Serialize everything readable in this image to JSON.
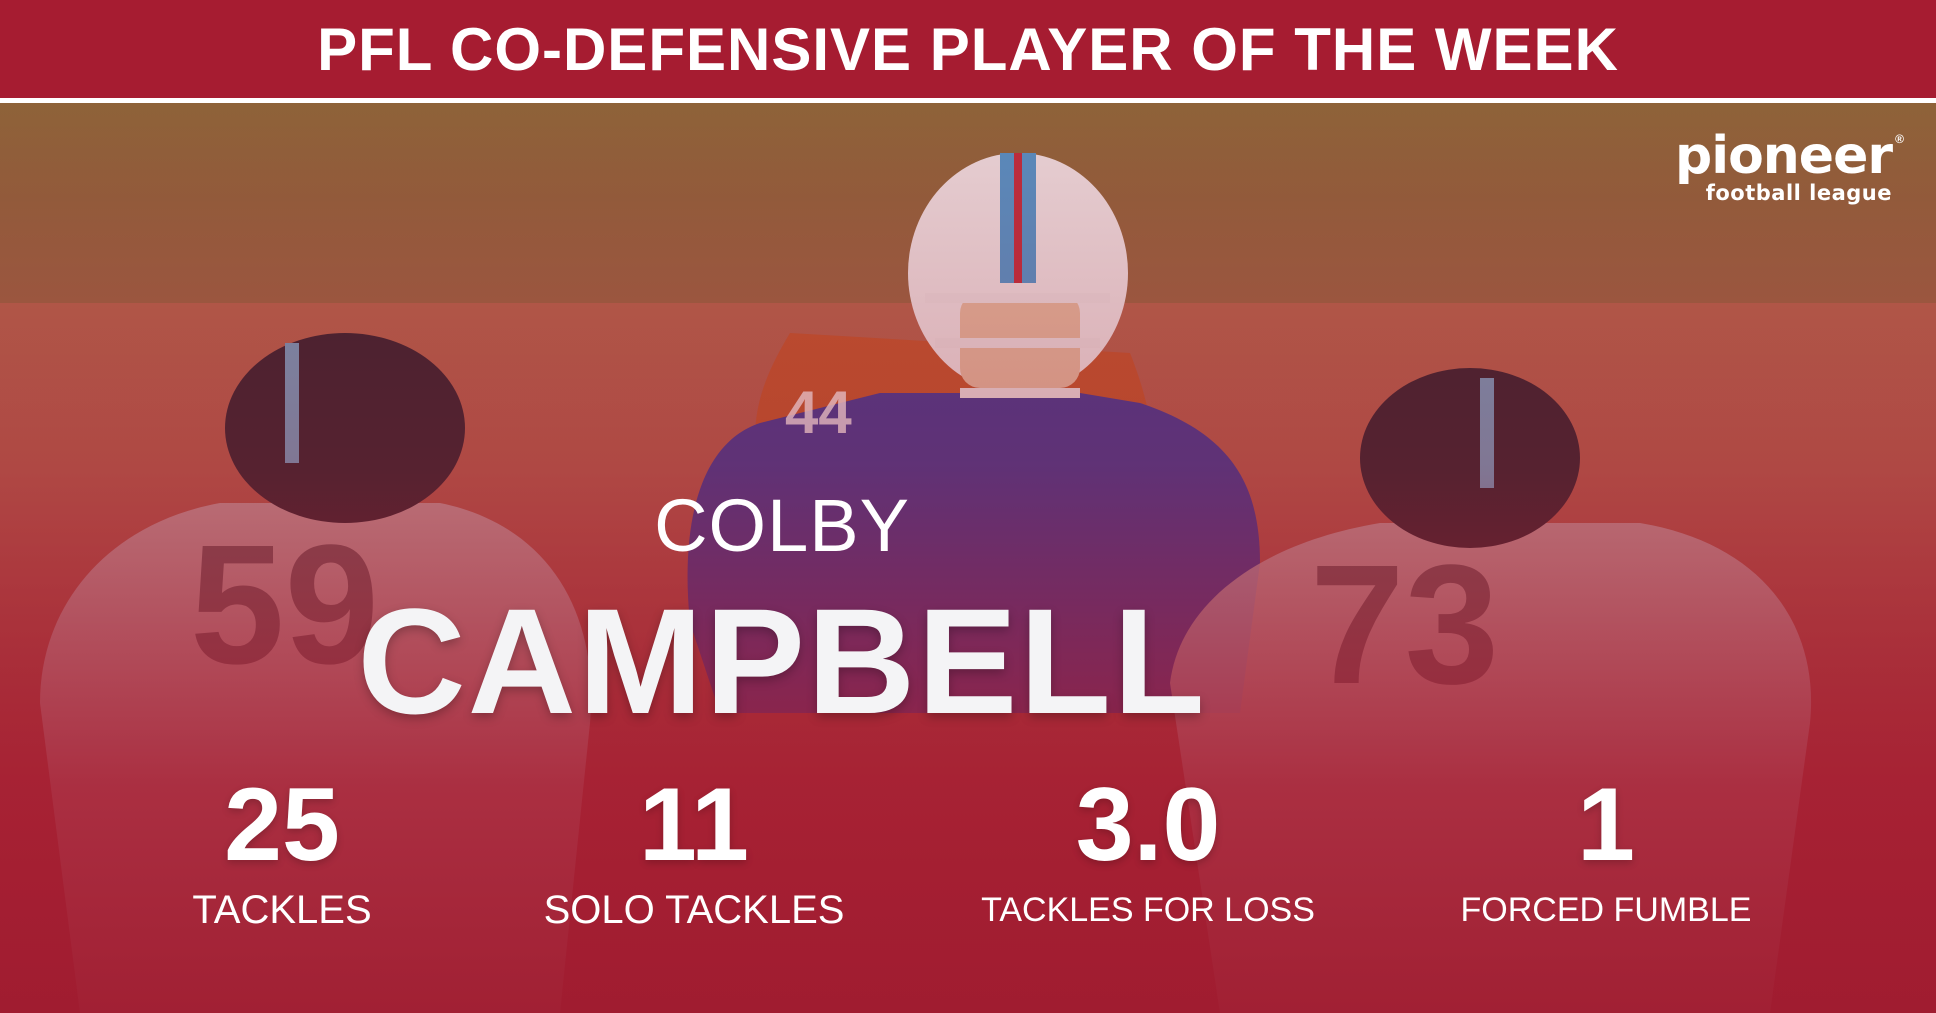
{
  "header": {
    "title": "PFL CO-DEFENSIVE PLAYER OF THE WEEK"
  },
  "logo": {
    "word": "pioneer",
    "sub": "football league",
    "reg": "®"
  },
  "player": {
    "first_name": "COLBY",
    "last_name": "CAMPBELL"
  },
  "stats": [
    {
      "value": "25",
      "label": "TACKLES"
    },
    {
      "value": "11",
      "label": "SOLO TACKLES"
    },
    {
      "value": "3.0",
      "label": "TACKLES FOR LOSS"
    },
    {
      "value": "1",
      "label": "FORCED FUMBLE"
    }
  ],
  "photo": {
    "jersey_left": "59",
    "jersey_right": "73",
    "jersey_center": "44"
  },
  "colors": {
    "brand_red": "#a61c31",
    "text": "#ffffff"
  }
}
